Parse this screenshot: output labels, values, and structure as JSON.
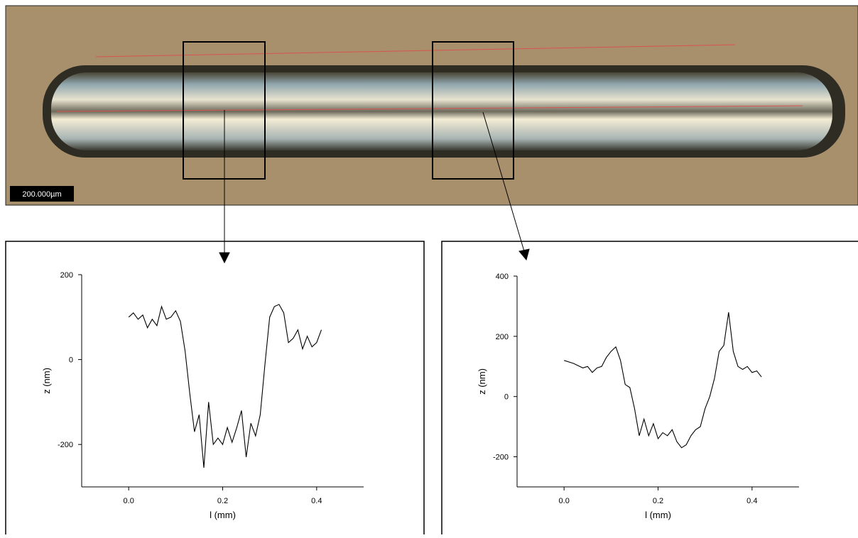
{
  "image": {
    "scale_bar": "200.000µm"
  },
  "chart_data": [
    {
      "type": "line",
      "xlabel": "l (mm)",
      "ylabel": "z (nm)",
      "color": "#000000",
      "xlim": [
        -0.1,
        0.5
      ],
      "ylim": [
        -300,
        200
      ],
      "xticks": [
        {
          "value": 0,
          "label": "0.0"
        },
        {
          "value": 0.2,
          "label": "0.2"
        },
        {
          "value": 0.4,
          "label": "0.4"
        }
      ],
      "yticks": [
        -200,
        0,
        200
      ],
      "x": [
        0,
        0.01,
        0.02,
        0.03,
        0.04,
        0.05,
        0.06,
        0.07,
        0.08,
        0.09,
        0.1,
        0.11,
        0.12,
        0.13,
        0.14,
        0.15,
        0.16,
        0.17,
        0.18,
        0.19,
        0.2,
        0.21,
        0.22,
        0.23,
        0.24,
        0.25,
        0.26,
        0.27,
        0.28,
        0.29,
        0.3,
        0.31,
        0.32,
        0.33,
        0.34,
        0.35,
        0.36,
        0.37,
        0.38,
        0.39,
        0.4,
        0.41
      ],
      "values": [
        100,
        110,
        95,
        105,
        75,
        95,
        80,
        125,
        95,
        100,
        115,
        90,
        20,
        -80,
        -170,
        -130,
        -255,
        -100,
        -200,
        -185,
        -200,
        -160,
        -195,
        -160,
        -120,
        -230,
        -150,
        -180,
        -130,
        -10,
        100,
        125,
        130,
        110,
        40,
        50,
        70,
        25,
        55,
        30,
        40,
        70
      ]
    },
    {
      "type": "line",
      "xlabel": "l (mm)",
      "ylabel": "z (nm)",
      "color": "#000000",
      "xlim": [
        -0.1,
        0.5
      ],
      "ylim": [
        -300,
        400
      ],
      "xticks": [
        {
          "value": 0,
          "label": "0.0"
        },
        {
          "value": 0.2,
          "label": "0.2"
        },
        {
          "value": 0.4,
          "label": "0.4"
        }
      ],
      "yticks": [
        -200,
        0,
        200,
        400
      ],
      "x": [
        0,
        0.02,
        0.04,
        0.05,
        0.06,
        0.07,
        0.08,
        0.09,
        0.1,
        0.11,
        0.12,
        0.13,
        0.14,
        0.15,
        0.16,
        0.17,
        0.18,
        0.19,
        0.2,
        0.21,
        0.22,
        0.23,
        0.24,
        0.25,
        0.26,
        0.27,
        0.28,
        0.29,
        0.3,
        0.31,
        0.32,
        0.33,
        0.34,
        0.35,
        0.36,
        0.37,
        0.38,
        0.39,
        0.4,
        0.41,
        0.42
      ],
      "values": [
        120,
        110,
        95,
        100,
        80,
        95,
        100,
        130,
        150,
        165,
        120,
        40,
        30,
        -40,
        -130,
        -75,
        -130,
        -90,
        -140,
        -120,
        -130,
        -110,
        -150,
        -170,
        -160,
        -130,
        -110,
        -100,
        -40,
        0,
        60,
        150,
        170,
        280,
        150,
        100,
        90,
        100,
        80,
        85,
        65
      ]
    }
  ]
}
